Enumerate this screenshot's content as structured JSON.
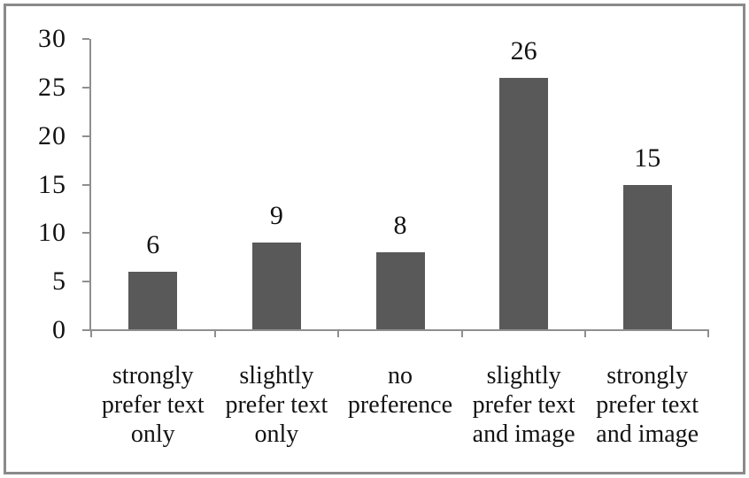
{
  "chart": {
    "frame_border_color": "#8a8a8a",
    "background_color": "#ffffff"
  },
  "chart_data": {
    "type": "bar",
    "title": "",
    "xlabel": "",
    "ylabel": "",
    "categories": [
      "strongly prefer text only",
      "slightly prefer text only",
      "no preference",
      "slightly prefer text and image",
      "strongly prefer text and image"
    ],
    "category_label_lines": [
      "strongly\nprefer text\nonly",
      "slightly\nprefer text\nonly",
      "no\npreference",
      "slightly\nprefer text\nand image",
      "strongly\nprefer text\nand image"
    ],
    "values": [
      6,
      9,
      8,
      26,
      15
    ],
    "data_labels": [
      "6",
      "9",
      "8",
      "26",
      "15"
    ],
    "y_ticks": [
      "0",
      "5",
      "10",
      "15",
      "20",
      "25",
      "30"
    ],
    "y_tick_values": [
      0,
      5,
      10,
      15,
      20,
      25,
      30
    ],
    "ylim": [
      0,
      30
    ],
    "grid": "off",
    "legend": "none",
    "bar_color": "#595959",
    "axis_color": "#8f8f8f",
    "text_color": "#121212"
  }
}
